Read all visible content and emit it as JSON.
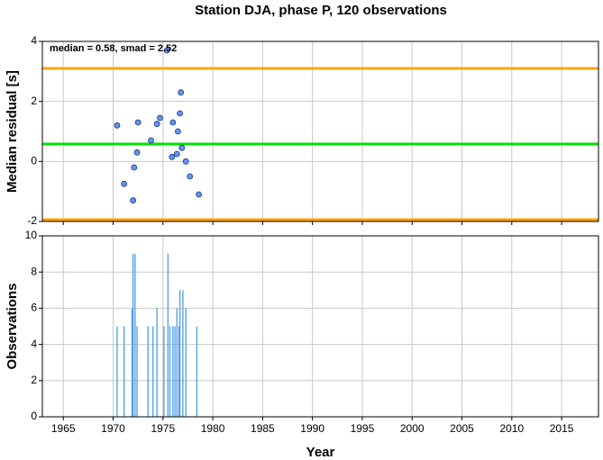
{
  "chart_data": [
    {
      "type": "scatter",
      "title": "Station DJA, phase P, 120 observations",
      "ylabel": "Median residual [s]",
      "annotation": "median = 0.58, smad = 2.52",
      "x": [
        1970.4,
        1971.1,
        1972.0,
        1972.1,
        1972.4,
        1972.5,
        1973.8,
        1974.4,
        1974.7,
        1975.4,
        1975.9,
        1976.0,
        1976.4,
        1976.5,
        1976.7,
        1976.8,
        1976.9,
        1977.3,
        1977.7,
        1978.6
      ],
      "values": [
        1.2,
        -0.75,
        -1.3,
        -0.2,
        0.3,
        1.3,
        0.7,
        1.25,
        1.45,
        3.7,
        0.15,
        1.3,
        0.25,
        1.0,
        1.6,
        2.3,
        0.45,
        0.0,
        -0.5,
        -1.1
      ],
      "color": "#6495ed",
      "hlines": [
        {
          "value": 3.1,
          "color": "#ffa500"
        },
        {
          "value": 0.58,
          "color": "#00e000"
        },
        {
          "value": -1.94,
          "color": "#ffa500"
        }
      ],
      "xlim": [
        1962.9,
        2018.7
      ],
      "xticks": [
        1965,
        1970,
        1975,
        1980,
        1985,
        1990,
        1995,
        2000,
        2005,
        2010,
        2015
      ],
      "ylim": [
        -2,
        4
      ],
      "yticks": [
        -2,
        0,
        2,
        4
      ],
      "grid": true
    },
    {
      "type": "bar",
      "ylabel": "Observations",
      "xlabel": "Year",
      "x": [
        1970.4,
        1971.1,
        1971.9,
        1972.0,
        1972.2,
        1972.4,
        1973.5,
        1974.0,
        1974.4,
        1975.1,
        1975.5,
        1975.7,
        1976.0,
        1976.2,
        1976.4,
        1976.6,
        1976.7,
        1977.0,
        1977.3,
        1978.4
      ],
      "values": [
        5,
        5,
        6,
        9,
        9,
        5,
        5,
        5,
        6,
        5,
        9,
        5,
        5,
        5,
        6,
        5,
        7,
        7,
        6,
        5
      ],
      "color": "#4a9ee8",
      "xlim": [
        1962.9,
        2018.7
      ],
      "xticks": [
        1965,
        1970,
        1975,
        1980,
        1985,
        1990,
        1995,
        2000,
        2005,
        2010,
        2015
      ],
      "ylim": [
        0,
        10
      ],
      "yticks": [
        0,
        2,
        4,
        6,
        8,
        10
      ],
      "grid": true
    }
  ]
}
